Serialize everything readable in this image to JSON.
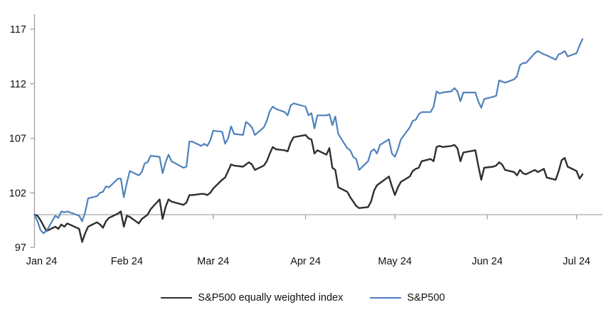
{
  "chart_data": {
    "type": "line",
    "title": "",
    "xlabel": "",
    "ylabel": "",
    "grid": false,
    "legend_position": "bottom-center",
    "y_axis": {
      "ticks": [
        97,
        102,
        107,
        112,
        117
      ],
      "min": 97,
      "max": 117
    },
    "reference_line_value": 100,
    "x_axis": {
      "tick_labels": [
        "Jan 24",
        "Feb 24",
        "Mar 24",
        "Apr 24",
        "May 24",
        "Jun 24",
        "Jul 24"
      ],
      "tick_day_offsets": [
        0,
        31,
        60,
        91,
        121,
        152,
        182
      ],
      "day_range": [
        0,
        184
      ]
    },
    "x_days": [
      0,
      1,
      2,
      3,
      4,
      7,
      8,
      9,
      10,
      11,
      15,
      16,
      17,
      18,
      21,
      22,
      23,
      24,
      25,
      28,
      29,
      30,
      31,
      32,
      35,
      36,
      37,
      38,
      39,
      42,
      43,
      44,
      45,
      46,
      50,
      51,
      52,
      53,
      56,
      57,
      58,
      59,
      60,
      63,
      64,
      65,
      66,
      67,
      70,
      71,
      72,
      73,
      74,
      77,
      78,
      79,
      80,
      81,
      84,
      85,
      86,
      87,
      91,
      92,
      93,
      94,
      95,
      98,
      99,
      100,
      101,
      102,
      105,
      106,
      107,
      108,
      109,
      112,
      113,
      114,
      115,
      116,
      119,
      120,
      121,
      122,
      123,
      126,
      127,
      128,
      129,
      130,
      133,
      134,
      135,
      136,
      137,
      140,
      141,
      142,
      143,
      144,
      148,
      149,
      150,
      151,
      154,
      155,
      156,
      157,
      158,
      161,
      162,
      163,
      164,
      165,
      168,
      169,
      171,
      172,
      175,
      176,
      177,
      178,
      179,
      182,
      183,
      184
    ],
    "series": [
      {
        "name": "S&P500 equally weighted index",
        "color": "#2e2e2e",
        "width": 2.4,
        "values": [
          100,
          99.9,
          99.5,
          99.0,
          98.5,
          98.9,
          98.7,
          99.1,
          98.9,
          99.2,
          98.7,
          97.5,
          98.3,
          98.9,
          99.3,
          99.1,
          98.8,
          99.4,
          99.7,
          100.1,
          100.3,
          98.9,
          99.9,
          99.8,
          99.2,
          99.6,
          99.8,
          100.0,
          100.5,
          101.4,
          99.6,
          100.7,
          101.4,
          101.2,
          100.9,
          101.1,
          101.8,
          101.8,
          101.9,
          101.9,
          101.8,
          102.0,
          102.4,
          103.2,
          103.4,
          104.0,
          104.6,
          104.5,
          104.4,
          104.6,
          104.8,
          104.6,
          104.1,
          104.5,
          104.9,
          105.6,
          106.2,
          106.0,
          105.9,
          105.8,
          106.6,
          107.1,
          107.3,
          107.0,
          106.9,
          105.6,
          105.9,
          105.5,
          106.1,
          104.3,
          104.1,
          102.5,
          102.1,
          101.6,
          101.2,
          100.8,
          100.6,
          100.7,
          101.2,
          102.2,
          102.7,
          102.9,
          103.5,
          102.6,
          101.8,
          102.5,
          103.0,
          103.5,
          104.0,
          104.2,
          104.3,
          104.9,
          105.1,
          104.9,
          106.2,
          106.3,
          106.2,
          106.3,
          106.4,
          106.1,
          104.9,
          105.7,
          105.9,
          104.5,
          103.2,
          104.3,
          104.4,
          104.5,
          104.8,
          104.6,
          104.1,
          103.9,
          103.6,
          104.1,
          103.8,
          103.7,
          104.1,
          103.9,
          104.2,
          103.4,
          103.2,
          104.0,
          105.0,
          105.2,
          104.4,
          104.0,
          103.3,
          103.7
        ]
      },
      {
        "name": "S&P500",
        "color": "#4f81bd",
        "width": 2.2,
        "values": [
          100,
          99.4,
          98.6,
          98.3,
          98.5,
          99.9,
          99.7,
          100.3,
          100.2,
          100.3,
          99.9,
          99.4,
          100.2,
          101.5,
          101.7,
          102.0,
          102.1,
          102.6,
          102.5,
          103.3,
          103.3,
          101.6,
          102.9,
          104.0,
          103.6,
          103.9,
          104.7,
          104.8,
          105.4,
          105.3,
          103.8,
          104.8,
          105.5,
          104.9,
          104.3,
          104.4,
          106.7,
          106.7,
          106.3,
          106.5,
          106.3,
          106.8,
          107.7,
          107.6,
          106.5,
          107.0,
          108.1,
          107.4,
          107.3,
          108.5,
          108.3,
          108.0,
          107.3,
          108.0,
          108.6,
          109.5,
          109.9,
          109.7,
          109.4,
          109.1,
          110.0,
          110.2,
          109.9,
          109.1,
          109.3,
          107.9,
          109.1,
          109.1,
          109.2,
          108.2,
          109.0,
          107.4,
          106.1,
          105.9,
          105.3,
          105.1,
          104.1,
          104.9,
          105.8,
          106.0,
          105.6,
          106.4,
          106.9,
          105.6,
          105.3,
          106.0,
          106.9,
          108.0,
          108.6,
          108.7,
          109.2,
          109.4,
          109.4,
          109.9,
          111.3,
          111.1,
          111.2,
          111.3,
          111.6,
          111.3,
          110.4,
          111.2,
          111.2,
          110.4,
          109.8,
          110.6,
          110.8,
          110.9,
          112.3,
          112.2,
          112.1,
          112.4,
          112.7,
          113.7,
          113.9,
          113.9,
          114.8,
          115.0,
          114.7,
          114.6,
          114.2,
          114.7,
          114.8,
          115.0,
          114.5,
          114.8,
          115.5,
          116.1
        ]
      }
    ]
  },
  "colors": {
    "axis": "#a0a0a0",
    "tick_label": "#111111"
  },
  "legend": {
    "items": [
      {
        "label": "S&P500 equally weighted index",
        "color": "#2e2e2e",
        "thickness": 2.6
      },
      {
        "label": "S&P500",
        "color": "#4f81bd",
        "thickness": 2.4
      }
    ]
  }
}
